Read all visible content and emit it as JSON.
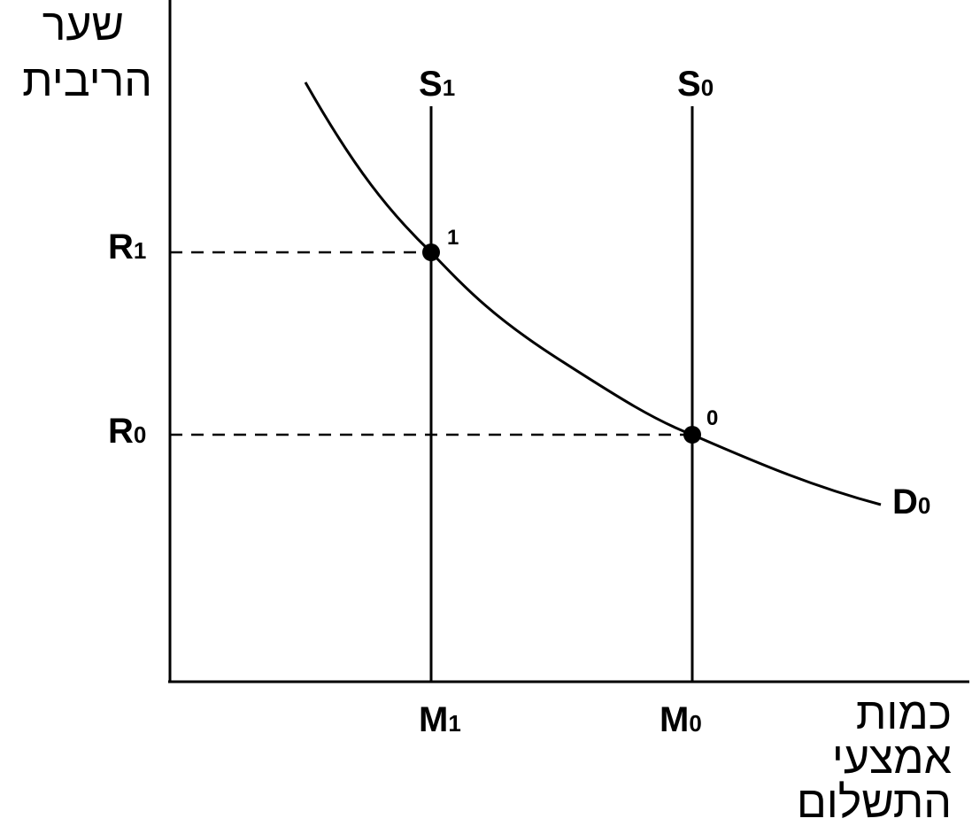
{
  "y_axis_label": [
    "שער",
    "הריבית"
  ],
  "x_axis_label": [
    "כמות",
    "אמצעי",
    "התשלום"
  ],
  "supply_curves": [
    {
      "main": "S",
      "sub": "1"
    },
    {
      "main": "S",
      "sub": "0"
    }
  ],
  "rates": [
    {
      "main": "R",
      "sub": "1"
    },
    {
      "main": "R",
      "sub": "0"
    }
  ],
  "quantities": [
    {
      "main": "M",
      "sub": "1"
    },
    {
      "main": "M",
      "sub": "0"
    }
  ],
  "demand_curve": {
    "main": "D",
    "sub": "0"
  },
  "points": [
    "1",
    "0"
  ]
}
